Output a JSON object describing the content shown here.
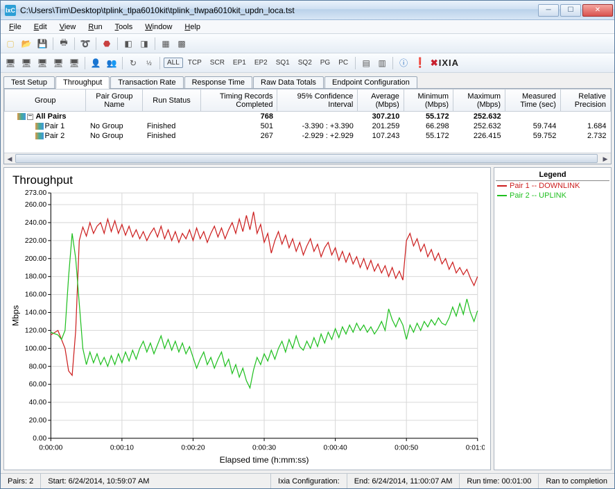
{
  "window": {
    "title": "C:\\Users\\Tim\\Desktop\\tplink_tlpa6010kit\\tplink_tlwpa6010kit_updn_loca.tst",
    "app_icon_text": "IxC"
  },
  "menu": {
    "items": [
      "File",
      "Edit",
      "View",
      "Run",
      "Tools",
      "Window",
      "Help"
    ]
  },
  "toolbar2_text_buttons": [
    "ALL",
    "TCP",
    "SCR",
    "EP1",
    "EP2",
    "SQ1",
    "SQ2",
    "PG",
    "PC"
  ],
  "brand": {
    "exclaim_color": "#f0a000",
    "text": "IXIA"
  },
  "tabs": {
    "items": [
      "Test Setup",
      "Throughput",
      "Transaction Rate",
      "Response Time",
      "Raw Data Totals",
      "Endpoint Configuration"
    ],
    "active_index": 1
  },
  "table": {
    "columns": [
      "Group",
      "Pair Group\nName",
      "Run Status",
      "Timing Records\nCompleted",
      "95% Confidence\nInterval",
      "Average\n(Mbps)",
      "Minimum\n(Mbps)",
      "Maximum\n(Mbps)",
      "Measured\nTime (sec)",
      "Relative\nPrecision"
    ],
    "rows": [
      {
        "bold": true,
        "icon": true,
        "tree": true,
        "cells": [
          "All Pairs",
          "",
          "",
          "768",
          "",
          "307.210",
          "55.172",
          "252.632",
          "",
          ""
        ]
      },
      {
        "bold": false,
        "icon": true,
        "tree": false,
        "cells": [
          "Pair 1",
          "No Group",
          "Finished",
          "501",
          "-3.390 : +3.390",
          "201.259",
          "66.298",
          "252.632",
          "59.744",
          "1.684"
        ]
      },
      {
        "bold": false,
        "icon": true,
        "tree": false,
        "cells": [
          "Pair 2",
          "No Group",
          "Finished",
          "267",
          "-2.929 : +2.929",
          "107.243",
          "55.172",
          "226.415",
          "59.752",
          "2.732"
        ]
      }
    ]
  },
  "chart": {
    "title": "Throughput",
    "y_label": "Mbps",
    "x_label": "Elapsed time (h:mm:ss)",
    "y_min": 0,
    "y_max": 273,
    "y_ticks": [
      0,
      20,
      40,
      60,
      80,
      100,
      120,
      140,
      160,
      180,
      200,
      220,
      240,
      260,
      273
    ],
    "y_tick_labels": [
      "0.00",
      "20.00",
      "40.00",
      "60.00",
      "80.00",
      "100.00",
      "120.00",
      "140.00",
      "160.00",
      "180.00",
      "200.00",
      "220.00",
      "240.00",
      "260.00",
      "273.00"
    ],
    "x_min": 0,
    "x_max": 60,
    "x_ticks": [
      0,
      10,
      20,
      30,
      40,
      50,
      60
    ],
    "x_tick_labels": [
      "0:00:00",
      "0:00:10",
      "0:00:20",
      "0:00:30",
      "0:00:40",
      "0:00:50",
      "0:01:00"
    ],
    "grid_color": "#d8d8d8",
    "axis_color": "#000000",
    "background_color": "#ffffff",
    "tick_font_size": 10,
    "label_font_size": 12,
    "title_font_size": 17,
    "line_width": 1.2,
    "series": [
      {
        "name": "Pair 1 -- DOWNLINK",
        "color": "#cc1e1e",
        "data": [
          [
            0,
            115
          ],
          [
            1,
            120
          ],
          [
            1.5,
            110
          ],
          [
            2,
            100
          ],
          [
            2.5,
            75
          ],
          [
            3,
            70
          ],
          [
            3.5,
            120
          ],
          [
            4,
            220
          ],
          [
            4.5,
            235
          ],
          [
            5,
            225
          ],
          [
            5.5,
            240
          ],
          [
            6,
            228
          ],
          [
            6.5,
            236
          ],
          [
            7,
            240
          ],
          [
            7.5,
            228
          ],
          [
            8,
            244
          ],
          [
            8.5,
            230
          ],
          [
            9,
            242
          ],
          [
            9.5,
            228
          ],
          [
            10,
            238
          ],
          [
            10.5,
            226
          ],
          [
            11,
            236
          ],
          [
            11.5,
            224
          ],
          [
            12,
            232
          ],
          [
            12.5,
            222
          ],
          [
            13,
            230
          ],
          [
            13.5,
            220
          ],
          [
            14,
            228
          ],
          [
            14.5,
            234
          ],
          [
            15,
            224
          ],
          [
            15.5,
            236
          ],
          [
            16,
            222
          ],
          [
            16.5,
            232
          ],
          [
            17,
            220
          ],
          [
            17.5,
            230
          ],
          [
            18,
            218
          ],
          [
            18.5,
            228
          ],
          [
            19,
            222
          ],
          [
            19.5,
            232
          ],
          [
            20,
            220
          ],
          [
            20.5,
            234
          ],
          [
            21,
            222
          ],
          [
            21.5,
            230
          ],
          [
            22,
            218
          ],
          [
            22.5,
            228
          ],
          [
            23,
            236
          ],
          [
            23.5,
            224
          ],
          [
            24,
            234
          ],
          [
            24.5,
            222
          ],
          [
            25,
            232
          ],
          [
            25.5,
            240
          ],
          [
            26,
            228
          ],
          [
            26.5,
            244
          ],
          [
            27,
            230
          ],
          [
            27.5,
            248
          ],
          [
            28,
            232
          ],
          [
            28.5,
            252
          ],
          [
            29,
            228
          ],
          [
            29.5,
            238
          ],
          [
            30,
            218
          ],
          [
            30.5,
            228
          ],
          [
            31,
            206
          ],
          [
            31.5,
            220
          ],
          [
            32,
            230
          ],
          [
            32.5,
            216
          ],
          [
            33,
            226
          ],
          [
            33.5,
            212
          ],
          [
            34,
            222
          ],
          [
            34.5,
            208
          ],
          [
            35,
            218
          ],
          [
            35.5,
            204
          ],
          [
            36,
            214
          ],
          [
            36.5,
            222
          ],
          [
            37,
            208
          ],
          [
            37.5,
            216
          ],
          [
            38,
            202
          ],
          [
            38.5,
            212
          ],
          [
            39,
            218
          ],
          [
            39.5,
            204
          ],
          [
            40,
            212
          ],
          [
            40.5,
            198
          ],
          [
            41,
            208
          ],
          [
            41.5,
            196
          ],
          [
            42,
            206
          ],
          [
            42.5,
            194
          ],
          [
            43,
            202
          ],
          [
            43.5,
            190
          ],
          [
            44,
            200
          ],
          [
            44.5,
            188
          ],
          [
            45,
            198
          ],
          [
            45.5,
            186
          ],
          [
            46,
            194
          ],
          [
            46.5,
            184
          ],
          [
            47,
            192
          ],
          [
            47.5,
            180
          ],
          [
            48,
            190
          ],
          [
            48.5,
            178
          ],
          [
            49,
            186
          ],
          [
            49.5,
            176
          ],
          [
            50,
            220
          ],
          [
            50.5,
            228
          ],
          [
            51,
            214
          ],
          [
            51.5,
            222
          ],
          [
            52,
            208
          ],
          [
            52.5,
            216
          ],
          [
            53,
            202
          ],
          [
            53.5,
            210
          ],
          [
            54,
            198
          ],
          [
            54.5,
            206
          ],
          [
            55,
            194
          ],
          [
            55.5,
            200
          ],
          [
            56,
            188
          ],
          [
            56.5,
            196
          ],
          [
            57,
            184
          ],
          [
            57.5,
            190
          ],
          [
            58,
            182
          ],
          [
            58.5,
            188
          ],
          [
            59,
            178
          ],
          [
            59.5,
            170
          ],
          [
            60,
            180
          ]
        ]
      },
      {
        "name": "Pair 2 -- UPLINK",
        "color": "#1fbf1f",
        "data": [
          [
            0,
            118
          ],
          [
            1,
            115
          ],
          [
            1.5,
            110
          ],
          [
            2,
            120
          ],
          [
            2.5,
            180
          ],
          [
            3,
            228
          ],
          [
            3.5,
            200
          ],
          [
            4,
            150
          ],
          [
            4.5,
            100
          ],
          [
            5,
            82
          ],
          [
            5.5,
            96
          ],
          [
            6,
            84
          ],
          [
            6.5,
            94
          ],
          [
            7,
            82
          ],
          [
            7.5,
            90
          ],
          [
            8,
            80
          ],
          [
            8.5,
            92
          ],
          [
            9,
            82
          ],
          [
            9.5,
            94
          ],
          [
            10,
            84
          ],
          [
            10.5,
            96
          ],
          [
            11,
            86
          ],
          [
            11.5,
            98
          ],
          [
            12,
            88
          ],
          [
            12.5,
            100
          ],
          [
            13,
            108
          ],
          [
            13.5,
            96
          ],
          [
            14,
            106
          ],
          [
            14.5,
            94
          ],
          [
            15,
            104
          ],
          [
            15.5,
            114
          ],
          [
            16,
            100
          ],
          [
            16.5,
            110
          ],
          [
            17,
            98
          ],
          [
            17.5,
            108
          ],
          [
            18,
            96
          ],
          [
            18.5,
            106
          ],
          [
            19,
            94
          ],
          [
            19.5,
            102
          ],
          [
            20,
            90
          ],
          [
            20.5,
            78
          ],
          [
            21,
            88
          ],
          [
            21.5,
            96
          ],
          [
            22,
            82
          ],
          [
            22.5,
            90
          ],
          [
            23,
            78
          ],
          [
            23.5,
            88
          ],
          [
            24,
            96
          ],
          [
            24.5,
            80
          ],
          [
            25,
            88
          ],
          [
            25.5,
            72
          ],
          [
            26,
            82
          ],
          [
            26.5,
            68
          ],
          [
            27,
            78
          ],
          [
            27.5,
            64
          ],
          [
            28,
            56
          ],
          [
            28.5,
            76
          ],
          [
            29,
            90
          ],
          [
            29.5,
            82
          ],
          [
            30,
            94
          ],
          [
            30.5,
            86
          ],
          [
            31,
            98
          ],
          [
            31.5,
            88
          ],
          [
            32,
            100
          ],
          [
            32.5,
            108
          ],
          [
            33,
            96
          ],
          [
            33.5,
            110
          ],
          [
            34,
            100
          ],
          [
            34.5,
            114
          ],
          [
            35,
            102
          ],
          [
            35.5,
            98
          ],
          [
            36,
            108
          ],
          [
            36.5,
            100
          ],
          [
            37,
            112
          ],
          [
            37.5,
            102
          ],
          [
            38,
            116
          ],
          [
            38.5,
            106
          ],
          [
            39,
            118
          ],
          [
            39.5,
            110
          ],
          [
            40,
            122
          ],
          [
            40.5,
            112
          ],
          [
            41,
            124
          ],
          [
            41.5,
            116
          ],
          [
            42,
            126
          ],
          [
            42.5,
            118
          ],
          [
            43,
            128
          ],
          [
            43.5,
            120
          ],
          [
            44,
            126
          ],
          [
            44.5,
            118
          ],
          [
            45,
            124
          ],
          [
            45.5,
            116
          ],
          [
            46,
            122
          ],
          [
            46.5,
            130
          ],
          [
            47,
            120
          ],
          [
            47.5,
            144
          ],
          [
            48,
            132
          ],
          [
            48.5,
            124
          ],
          [
            49,
            134
          ],
          [
            49.5,
            126
          ],
          [
            50,
            110
          ],
          [
            50.5,
            126
          ],
          [
            51,
            118
          ],
          [
            51.5,
            128
          ],
          [
            52,
            120
          ],
          [
            52.5,
            130
          ],
          [
            53,
            124
          ],
          [
            53.5,
            132
          ],
          [
            54,
            126
          ],
          [
            54.5,
            134
          ],
          [
            55,
            128
          ],
          [
            55.5,
            126
          ],
          [
            56,
            134
          ],
          [
            56.5,
            146
          ],
          [
            57,
            136
          ],
          [
            57.5,
            150
          ],
          [
            58,
            138
          ],
          [
            58.5,
            155
          ],
          [
            59,
            140
          ],
          [
            59.5,
            130
          ],
          [
            60,
            142
          ]
        ]
      }
    ]
  },
  "legend": {
    "title": "Legend",
    "items": [
      {
        "swatch": "#cc1e1e",
        "label": "Pair 1 -- DOWNLINK"
      },
      {
        "swatch": "#1fbf1f",
        "label": "Pair 2 -- UPLINK"
      }
    ]
  },
  "status": {
    "pairs": "Pairs: 2",
    "start": "Start: 6/24/2014, 10:59:07 AM",
    "config": "Ixia Configuration:",
    "end": "End: 6/24/2014, 11:00:07 AM",
    "runtime": "Run time: 00:01:00",
    "result": "Ran to completion"
  }
}
